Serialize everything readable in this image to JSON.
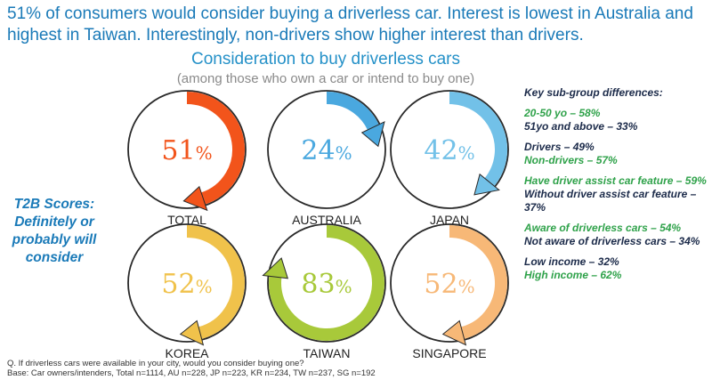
{
  "headline": "51% of consumers would consider buying a driverless car. Interest is lowest in Australia and highest in Taiwan. Interestingly, non-drivers show higher interest than drivers.",
  "t2b_label": "T2B Scores: Definitely or probably will consider",
  "chart_data": {
    "type": "radial-gauge",
    "title": "Consideration to buy driverless cars",
    "subtitle": "(among those who own a car or intend to buy one)",
    "unit": "%",
    "categories": [
      "TOTAL",
      "AUSTRALIA",
      "JAPAN",
      "KOREA",
      "TAIWAN",
      "SINGAPORE"
    ],
    "values": [
      51,
      24,
      42,
      52,
      83,
      52
    ],
    "colors": [
      "#f2541b",
      "#4aa8df",
      "#72c1e8",
      "#f0c24b",
      "#a8c93a",
      "#f7b877"
    ]
  },
  "panel": {
    "title": "Key sub-group differences:",
    "groups": [
      {
        "a": "20-50 yo – 58%",
        "b": "51yo and above – 33%"
      },
      {
        "a": "Drivers – 49%",
        "b": "Non-drivers – 57%"
      },
      {
        "a": "Have driver assist car feature – 59%",
        "b": "Without driver assist car feature – 37%"
      },
      {
        "a": "Aware of driverless cars – 54%",
        "b": "Not aware of driverless cars – 34%"
      },
      {
        "a": "Low income – 32%",
        "b": "High income – 62%"
      }
    ],
    "color_green": "#2fa24a",
    "color_navy": "#1c2b4a"
  },
  "footnote": {
    "line1": "Q. If driverless cars were available in your city, would you consider buying one?",
    "line2": "Base: Car owners/intenders, Total n=1114, AU n=228, JP n=223, KR n=234, TW n=237, SG n=192"
  }
}
